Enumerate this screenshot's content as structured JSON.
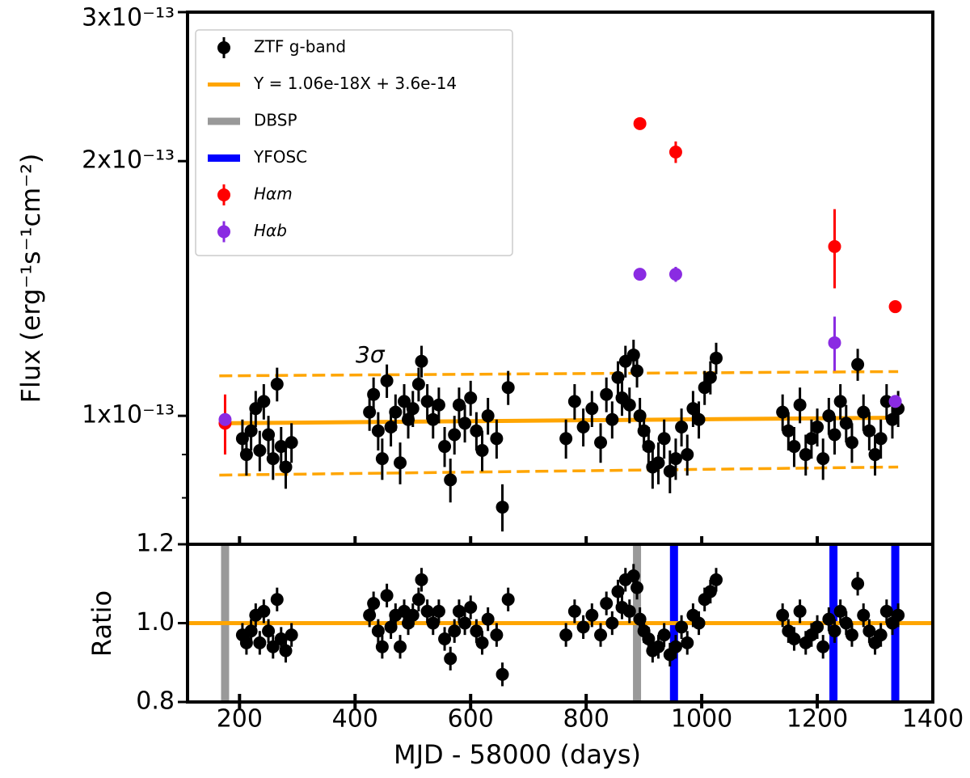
{
  "chart_data": {
    "type": "scatter",
    "x_label": "MJD - 58000 (days)",
    "xlim": [
      110,
      1400
    ],
    "xticks": [
      200,
      400,
      600,
      800,
      1000,
      1200,
      1400
    ],
    "legend": "upper left",
    "annotation": "3σ",
    "annotation_color": "#ffa500",
    "panels": {
      "flux": {
        "y_label": "Flux (erg⁻¹s⁻¹cm⁻²)",
        "yscale": "log",
        "ylim": [
          7.05e-14,
          3e-13
        ],
        "yticks": [
          {
            "value": 1e-13,
            "label": "1x10⁻¹³"
          },
          {
            "value": 2e-13,
            "label": "2x10⁻¹³"
          },
          {
            "value": 3e-13,
            "label": "3x10⁻¹³"
          }
        ],
        "minor_yticks": [
          8e-14,
          9e-14
        ],
        "xtick_labels": false
      },
      "ratio": {
        "y_label": "Ratio",
        "ylim": [
          0.8,
          1.2
        ],
        "yticks": [
          {
            "value": 0.8,
            "label": "0.8"
          },
          {
            "value": 1.0,
            "label": "1.0"
          },
          {
            "value": 1.2,
            "label": "1.2"
          }
        ],
        "xtick_labels": true
      }
    },
    "series": [
      {
        "panel": "flux",
        "kind": "errorbar",
        "name": "ZTF g-band",
        "color": "#000000",
        "error": 5e-15,
        "x": [
          205,
          212,
          220,
          228,
          235,
          242,
          250,
          258,
          265,
          272,
          280,
          290,
          425,
          432,
          440,
          447,
          455,
          462,
          470,
          478,
          485,
          492,
          500,
          510,
          515,
          525,
          535,
          545,
          555,
          565,
          572,
          580,
          590,
          600,
          610,
          620,
          630,
          645,
          655,
          665,
          765,
          780,
          795,
          810,
          825,
          835,
          845,
          855,
          862,
          868,
          875,
          882,
          888,
          893,
          900,
          908,
          915,
          925,
          935,
          945,
          955,
          965,
          975,
          985,
          995,
          1005,
          1015,
          1025,
          1140,
          1150,
          1160,
          1170,
          1180,
          1190,
          1200,
          1210,
          1220,
          1230,
          1240,
          1250,
          1260,
          1270,
          1280,
          1290,
          1300,
          1310,
          1320,
          1330,
          1340
        ],
        "values": [
          9.4e-14,
          9e-14,
          9.6e-14,
          1.02e-13,
          9.1e-14,
          1.04e-13,
          9.5e-14,
          8.9e-14,
          1.09e-13,
          9.2e-14,
          8.7e-14,
          9.3e-14,
          1.01e-13,
          1.06e-13,
          9.6e-14,
          8.9e-14,
          1.1e-13,
          9.7e-14,
          1.01e-13,
          8.8e-14,
          1.04e-13,
          9.9e-14,
          1.02e-13,
          1.09e-13,
          1.16e-13,
          1.04e-13,
          9.9e-14,
          1.03e-13,
          9.2e-14,
          8.4e-14,
          9.5e-14,
          1.03e-13,
          9.8e-14,
          1.05e-13,
          9.6e-14,
          9.1e-14,
          1e-13,
          9.4e-14,
          7.8e-14,
          1.08e-13,
          9.4e-14,
          1.04e-13,
          9.7e-14,
          1.02e-13,
          9.3e-14,
          1.06e-13,
          9.9e-14,
          1.11e-13,
          1.05e-13,
          1.16e-13,
          1.03e-13,
          1.18e-13,
          1.13e-13,
          1e-13,
          9.6e-14,
          9.2e-14,
          8.7e-14,
          8.8e-14,
          9.4e-14,
          8.6e-14,
          8.9e-14,
          9.7e-14,
          9e-14,
          1.02e-13,
          9.9e-14,
          1.08e-13,
          1.11e-13,
          1.17e-13,
          1.01e-13,
          9.6e-14,
          9.2e-14,
          1.03e-13,
          9e-14,
          9.4e-14,
          9.7e-14,
          8.9e-14,
          1e-13,
          9.5e-14,
          1.04e-13,
          9.8e-14,
          9.3e-14,
          1.15e-13,
          1.01e-13,
          9.6e-14,
          9e-14,
          9.4e-14,
          1.04e-13,
          9.9e-14,
          1.02e-13
        ]
      },
      {
        "panel": "flux",
        "kind": "line",
        "name": "Y = 1.06e-18X + 3.6e-14",
        "color": "#ffa500",
        "x": [
          165,
          1340
        ],
        "values": [
          9.8e-14,
          9.95e-14
        ]
      },
      {
        "panel": "ratio",
        "kind": "vline",
        "name": "DBSP",
        "color": "#999999",
        "x": [
          175,
          888
        ]
      },
      {
        "panel": "ratio",
        "kind": "vline",
        "name": "YFOSC",
        "color": "#0000ff",
        "x": [
          952,
          1228,
          1335
        ]
      },
      {
        "panel": "flux",
        "kind": "errorbar",
        "name": "Hαm",
        "color": "#ff0000",
        "x": [
          175,
          893,
          955,
          1230,
          1335
        ],
        "values": [
          9.8e-14,
          2.215e-13,
          2.05e-13,
          1.585e-13,
          1.346e-13
        ],
        "errors": [
          8e-15,
          2e-15,
          6e-15,
          1.7e-14,
          2e-15
        ]
      },
      {
        "panel": "flux",
        "kind": "errorbar",
        "name": "Hαb",
        "color": "#8a2be2",
        "x": [
          175,
          893,
          955,
          1230,
          1335
        ],
        "values": [
          9.9e-14,
          1.47e-13,
          1.47e-13,
          1.22e-13,
          1.04e-13
        ],
        "errors": [
          1e-15,
          1e-15,
          3e-15,
          9e-15,
          1e-15
        ]
      },
      {
        "panel": "flux",
        "kind": "dashed",
        "color": "#ffa500",
        "x": [
          165,
          1340
        ],
        "values": [
          1.115e-13,
          1.128e-13
        ]
      },
      {
        "panel": "flux",
        "kind": "dashed",
        "color": "#ffa500",
        "x": [
          165,
          1340
        ],
        "values": [
          8.51e-14,
          8.7e-14
        ]
      },
      {
        "panel": "ratio",
        "kind": "line",
        "color": "#ffa500",
        "x": [
          110,
          1400
        ],
        "values": [
          1.0,
          1.0
        ]
      },
      {
        "panel": "ratio",
        "kind": "errorbar",
        "color": "#000000",
        "error": 0.03,
        "x": [
          205,
          212,
          220,
          228,
          235,
          242,
          250,
          258,
          265,
          272,
          280,
          290,
          425,
          432,
          440,
          447,
          455,
          462,
          470,
          478,
          485,
          492,
          500,
          510,
          515,
          525,
          535,
          545,
          555,
          565,
          572,
          580,
          590,
          600,
          610,
          620,
          630,
          645,
          655,
          665,
          765,
          780,
          795,
          810,
          825,
          835,
          845,
          855,
          862,
          868,
          875,
          882,
          888,
          893,
          900,
          908,
          915,
          925,
          935,
          945,
          955,
          965,
          975,
          985,
          995,
          1005,
          1015,
          1025,
          1140,
          1150,
          1160,
          1170,
          1180,
          1190,
          1200,
          1210,
          1220,
          1230,
          1240,
          1250,
          1260,
          1270,
          1280,
          1290,
          1300,
          1310,
          1320,
          1330,
          1340
        ],
        "values": [
          0.97,
          0.95,
          0.98,
          1.02,
          0.95,
          1.03,
          0.98,
          0.94,
          1.06,
          0.96,
          0.93,
          0.97,
          1.02,
          1.05,
          0.98,
          0.94,
          1.07,
          0.99,
          1.02,
          0.94,
          1.03,
          1.0,
          1.02,
          1.06,
          1.11,
          1.03,
          1.0,
          1.03,
          0.96,
          0.91,
          0.98,
          1.03,
          1.0,
          1.04,
          0.98,
          0.95,
          1.01,
          0.97,
          0.87,
          1.06,
          0.97,
          1.03,
          0.99,
          1.02,
          0.97,
          1.05,
          1.0,
          1.08,
          1.04,
          1.11,
          1.03,
          1.12,
          1.09,
          1.01,
          0.98,
          0.96,
          0.93,
          0.94,
          0.97,
          0.92,
          0.94,
          0.99,
          0.95,
          1.02,
          1.0,
          1.06,
          1.08,
          1.11,
          1.02,
          0.98,
          0.96,
          1.03,
          0.95,
          0.97,
          0.99,
          0.94,
          1.01,
          0.98,
          1.03,
          1.0,
          0.97,
          1.1,
          1.02,
          0.98,
          0.95,
          0.97,
          1.03,
          1.0,
          1.02
        ]
      }
    ]
  }
}
